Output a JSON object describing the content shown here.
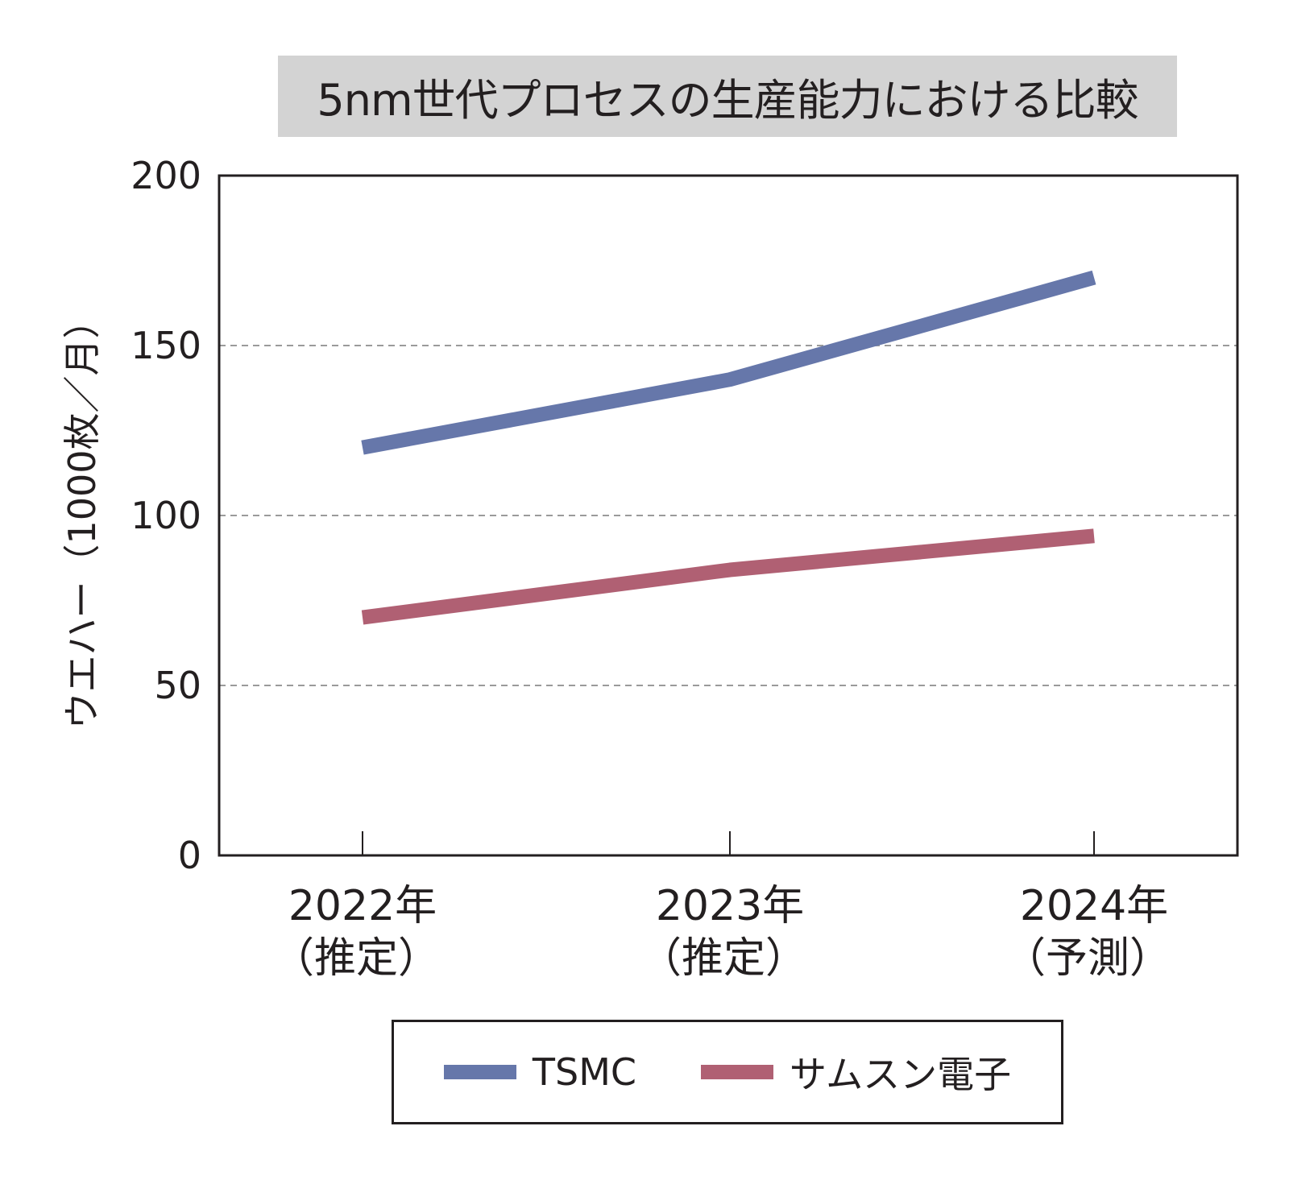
{
  "chart_data": {
    "type": "line",
    "title": "5nm世代プロセスの生産能力における比較",
    "ylabel": "ウエハー（1000枚／月）",
    "xlabel": "",
    "ylim": [
      0,
      200
    ],
    "yticks": [
      0,
      50,
      100,
      150,
      200
    ],
    "categories": [
      {
        "year": "2022年",
        "note": "（推定）"
      },
      {
        "year": "2023年",
        "note": "（推定）"
      },
      {
        "year": "2024年",
        "note": "（予測）"
      }
    ],
    "grid": {
      "horizontal": true,
      "style": "dashed",
      "values": [
        50,
        100,
        150
      ]
    },
    "legend_placement": "bottom",
    "series": [
      {
        "name": "TSMC",
        "color": "#6677aa",
        "values": [
          120,
          140,
          170
        ]
      },
      {
        "name": "サムスン電子",
        "color": "#b06073",
        "values": [
          70,
          84,
          94
        ]
      }
    ]
  }
}
